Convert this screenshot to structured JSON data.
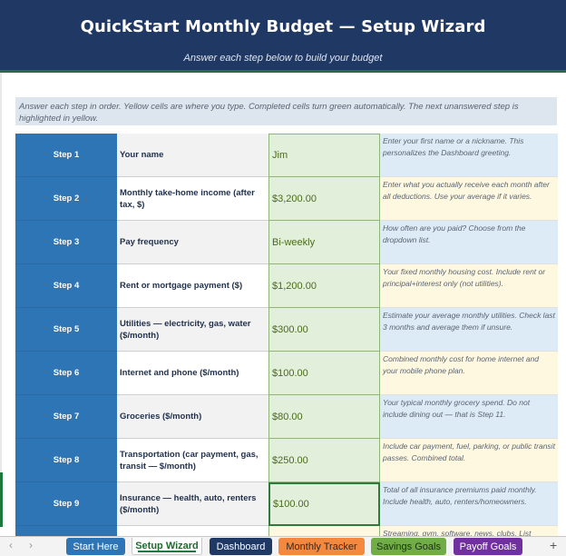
{
  "header": {
    "title": "QuickStart Monthly Budget  —  Setup Wizard",
    "subtitle": "Answer each step below to build your budget"
  },
  "instructions": "Answer each step in order. Yellow cells are where you type. Completed cells turn green automatically. The next unanswered step is highlighted in yellow.",
  "steps": [
    {
      "step": "Step 1",
      "label": "Your name",
      "value": "Jim",
      "help": "Enter your first name or a nickname. This personalizes the Dashboard greeting."
    },
    {
      "step": "Step 2",
      "label": "Monthly take-home income (after tax, $)",
      "value": "$3,200.00",
      "help": "Enter what you actually receive each month after all deductions. Use your average if it varies."
    },
    {
      "step": "Step 3",
      "label": "Pay frequency",
      "value": "Bi-weekly",
      "help": "How often are you paid? Choose from the dropdown list."
    },
    {
      "step": "Step 4",
      "label": "Rent or mortgage payment ($)",
      "value": "$1,200.00",
      "help": "Your fixed monthly housing cost. Include rent or principal+interest only (not utilities)."
    },
    {
      "step": "Step 5",
      "label": "Utilities — electricity, gas, water ($/month)",
      "value": "$300.00",
      "help": "Estimate your average monthly utilities. Check last 3 months and average them if unsure."
    },
    {
      "step": "Step 6",
      "label": "Internet and phone ($/month)",
      "value": "$100.00",
      "help": "Combined monthly cost for home internet and your mobile phone plan."
    },
    {
      "step": "Step 7",
      "label": "Groceries ($/month)",
      "value": "$80.00",
      "help": "Your typical monthly grocery spend. Do not include dining out — that is Step 11."
    },
    {
      "step": "Step 8",
      "label": "Transportation (car payment, gas, transit — $/month)",
      "value": "$250.00",
      "help": "Include car payment, fuel, parking, or public transit passes. Combined total."
    },
    {
      "step": "Step 9",
      "label": "Insurance — health, auto, renters ($/month)",
      "value": "$100.00",
      "help": "Total of all insurance premiums paid monthly. Include health, auto, renters/homeowners."
    },
    {
      "step": "",
      "label": "",
      "value": "",
      "help": "Streaming, gym, software, news, clubs. List"
    }
  ],
  "tabs": {
    "start": "Start Here",
    "setup": "Setup Wizard",
    "dashboard": "Dashboard",
    "tracker": "Monthly Tracker",
    "savings": "Savings Goals",
    "payoff": "Payoff Goals",
    "nav_prev": "‹",
    "nav_next": "›",
    "add": "+"
  },
  "colors": {
    "header_bg": "#1f3864",
    "step_bg": "#2e75b6",
    "value_bg": "#e2efda",
    "help_blue": "#ddebf7",
    "help_cream": "#fff8e1"
  }
}
